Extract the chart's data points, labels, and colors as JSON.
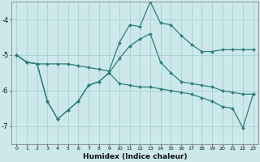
{
  "xlabel": "Humidex (Indice chaleur)",
  "background_color": "#cce8ea",
  "grid_color": "#9ecece",
  "line_color": "#2d7d7d",
  "x": [
    0,
    1,
    2,
    3,
    4,
    5,
    6,
    7,
    8,
    9,
    10,
    11,
    12,
    13,
    14,
    15,
    16,
    17,
    18,
    19,
    20,
    21,
    22,
    23
  ],
  "line_upper": [
    -5.0,
    -5.2,
    -5.25,
    -5.25,
    -5.25,
    -5.25,
    -5.3,
    -5.35,
    -5.4,
    -5.45,
    -4.65,
    -4.15,
    -4.2,
    -3.5,
    -4.1,
    -4.15,
    -4.45,
    -4.7,
    -4.9,
    -4.9,
    -4.85,
    -4.85,
    -4.85,
    -4.85
  ],
  "line_mid": [
    -5.0,
    -5.2,
    -5.25,
    -6.3,
    -6.8,
    -6.55,
    -6.3,
    -5.85,
    -5.75,
    -5.5,
    -5.1,
    -4.75,
    -4.55,
    -4.4,
    -5.2,
    -5.5,
    -5.75,
    -5.8,
    -5.85,
    -5.9,
    -6.0,
    -6.05,
    -6.1,
    -6.1
  ],
  "line_lower": [
    -5.0,
    -5.2,
    -5.25,
    -6.3,
    -6.8,
    -6.55,
    -6.3,
    -5.85,
    -5.75,
    -5.5,
    -5.8,
    -5.85,
    -5.9,
    -5.9,
    -5.95,
    -6.0,
    -6.05,
    -6.1,
    -6.2,
    -6.3,
    -6.45,
    -6.5,
    -7.05,
    -6.1
  ],
  "xlim": [
    -0.5,
    23.5
  ],
  "ylim": [
    -7.5,
    -3.5
  ],
  "yticks": [
    -7,
    -6,
    -5,
    -4
  ]
}
